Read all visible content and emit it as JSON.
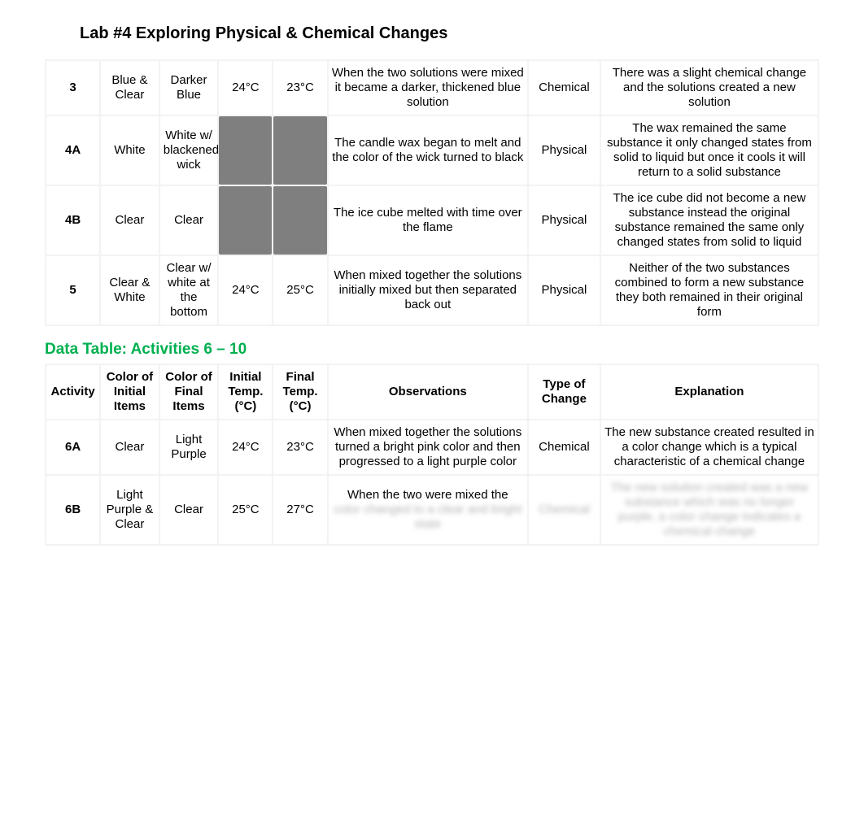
{
  "title": "Lab #4 Exploring Physical & Chemical Changes",
  "section_title": "Data Table: Activities 6 – 10",
  "colors": {
    "section_title": "#00b050",
    "gray_block": "#7f7f7f",
    "text": "#000000",
    "bg": "#ffffff",
    "table_bg": "#f3f3f3"
  },
  "headers": {
    "activity": "Activity",
    "color_initial": "Color of Initial Items",
    "color_final": "Color of Final Items",
    "temp_initial": "Initial Temp. (°C)",
    "temp_final": "Final Temp. (°C)",
    "observations": "Observations",
    "type": "Type of Change",
    "explanation": "Explanation"
  },
  "table1": [
    {
      "activity": "3",
      "color_initial": "Blue & Clear",
      "color_final": "Darker Blue",
      "temp_initial": "24°C",
      "temp_final": "23°C",
      "observations": "When the two solutions were mixed it became a darker, thickened blue solution",
      "type": "Chemical",
      "explanation": "There was a slight chemical change and the solutions created a new solution"
    },
    {
      "activity": "4A",
      "color_initial": "White",
      "color_final": "White w/ blackened wick",
      "temp_initial": "",
      "temp_final": "",
      "observations": "The candle wax began to melt and the color of the wick turned to black",
      "type": "Physical",
      "explanation": "The wax remained the same substance it only changed states from solid to liquid but once it cools it will return to a solid substance",
      "gray_temps": true
    },
    {
      "activity": "4B",
      "color_initial": "Clear",
      "color_final": "Clear",
      "temp_initial": "",
      "temp_final": "",
      "observations": "The ice cube melted with time over the flame",
      "type": "Physical",
      "explanation": "The ice cube did not become a new substance instead the original substance remained the same only changed states from solid to liquid",
      "gray_temps": true
    },
    {
      "activity": "5",
      "color_initial": "Clear & White",
      "color_final": "Clear w/ white at the bottom",
      "temp_initial": "24°C",
      "temp_final": "25°C",
      "observations": "When mixed together the solutions initially mixed but then separated back out",
      "type": "Physical",
      "explanation": "Neither of the two substances combined to form a new substance they both remained in their original form"
    }
  ],
  "table2": [
    {
      "activity": "6A",
      "color_initial": "Clear",
      "color_final": "Light Purple",
      "temp_initial": "24°C",
      "temp_final": "23°C",
      "observations": "When mixed together the solutions turned a bright pink color and then progressed to a light purple color",
      "type": "Chemical",
      "explanation": "The new substance created resulted in a color change which is a typical characteristic of a chemical change"
    },
    {
      "activity": "6B",
      "color_initial": "Light Purple & Clear",
      "color_final": "Clear",
      "temp_initial": "25°C",
      "temp_final": "27°C",
      "observations": "When the two were mixed the",
      "type": "",
      "explanation": "",
      "blurred_tail": true
    }
  ]
}
